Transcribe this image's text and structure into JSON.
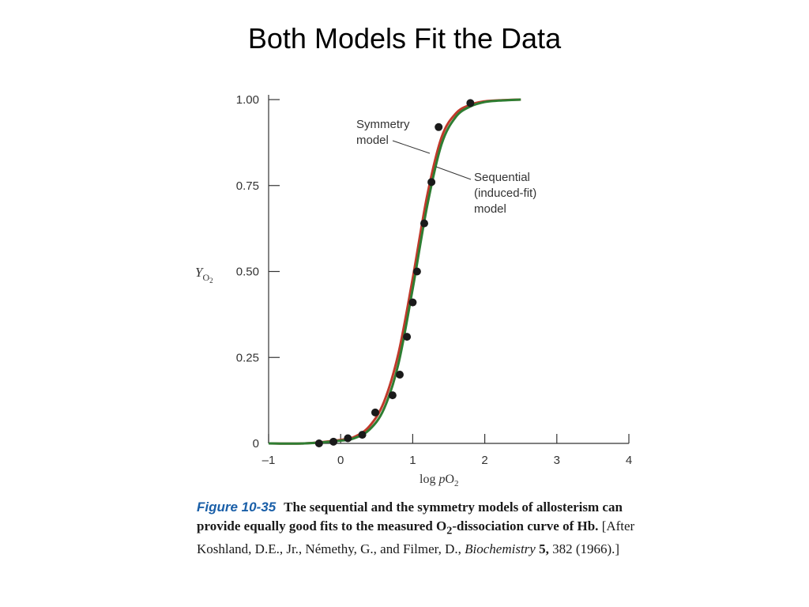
{
  "slide": {
    "title": "Both Models Fit the Data"
  },
  "chart_data": {
    "type": "line",
    "title": "",
    "xlabel": "log pO2",
    "ylabel": "Y O2",
    "xlim": [
      -1,
      4
    ],
    "ylim": [
      0,
      1
    ],
    "x_ticks": [
      "–1",
      "0",
      "1",
      "2",
      "3",
      "4"
    ],
    "y_ticks": [
      "0",
      "0.25",
      "0.50",
      "0.75",
      "1.00"
    ],
    "grid": false,
    "series": [
      {
        "name": "Symmetry model",
        "color": "#c0392b",
        "x": [
          -1.0,
          -0.5,
          0.0,
          0.2,
          0.4,
          0.6,
          0.8,
          1.0,
          1.2,
          1.4,
          1.6,
          1.8,
          2.0,
          2.2,
          2.5
        ],
        "y": [
          0.0,
          0.0,
          0.01,
          0.02,
          0.05,
          0.12,
          0.26,
          0.48,
          0.72,
          0.89,
          0.96,
          0.985,
          0.995,
          0.998,
          1.0
        ]
      },
      {
        "name": "Sequential (induced-fit) model",
        "color": "#2e7d32",
        "x": [
          -1.0,
          -0.5,
          0.0,
          0.2,
          0.4,
          0.6,
          0.8,
          1.0,
          1.2,
          1.4,
          1.6,
          1.8,
          2.0,
          2.2,
          2.5
        ],
        "y": [
          0.0,
          0.0,
          0.008,
          0.016,
          0.04,
          0.1,
          0.23,
          0.45,
          0.69,
          0.87,
          0.95,
          0.98,
          0.993,
          0.997,
          1.0
        ]
      }
    ],
    "points": {
      "x": [
        -0.3,
        -0.1,
        0.1,
        0.3,
        0.48,
        0.72,
        0.82,
        0.92,
        1.0,
        1.06,
        1.16,
        1.26,
        1.36,
        1.8
      ],
      "y": [
        0.0,
        0.005,
        0.015,
        0.025,
        0.09,
        0.14,
        0.2,
        0.31,
        0.41,
        0.5,
        0.64,
        0.76,
        0.92,
        0.99
      ]
    },
    "annotations": [
      "Symmetry model",
      "Sequential (induced-fit) model"
    ]
  },
  "caption": {
    "figure_label": "Figure 10-35",
    "bold_text": "The sequential and the symmetry models of allosterism can provide equally good fits to the measured O",
    "bold_sub": "2",
    "bold_text2": "-dissociation curve of Hb.",
    "plain_text": " [After Koshland, D.E., Jr., Némethy, G., and Filmer, D., ",
    "journal": "Biochemistry",
    "volume": " 5,",
    "pages_year": " 382 (1966).]"
  },
  "labels": {
    "symmetry_line1": "Symmetry",
    "symmetry_line2": "model",
    "sequential_line1": "Sequential",
    "sequential_line2": "(induced-fit)",
    "sequential_line3": "model",
    "y_axis_main": "Y",
    "y_axis_sub": "O",
    "y_axis_sub2": "2",
    "x_axis_main": "log ",
    "x_axis_p": "p",
    "x_axis_o": "O",
    "x_axis_sub": "2"
  }
}
